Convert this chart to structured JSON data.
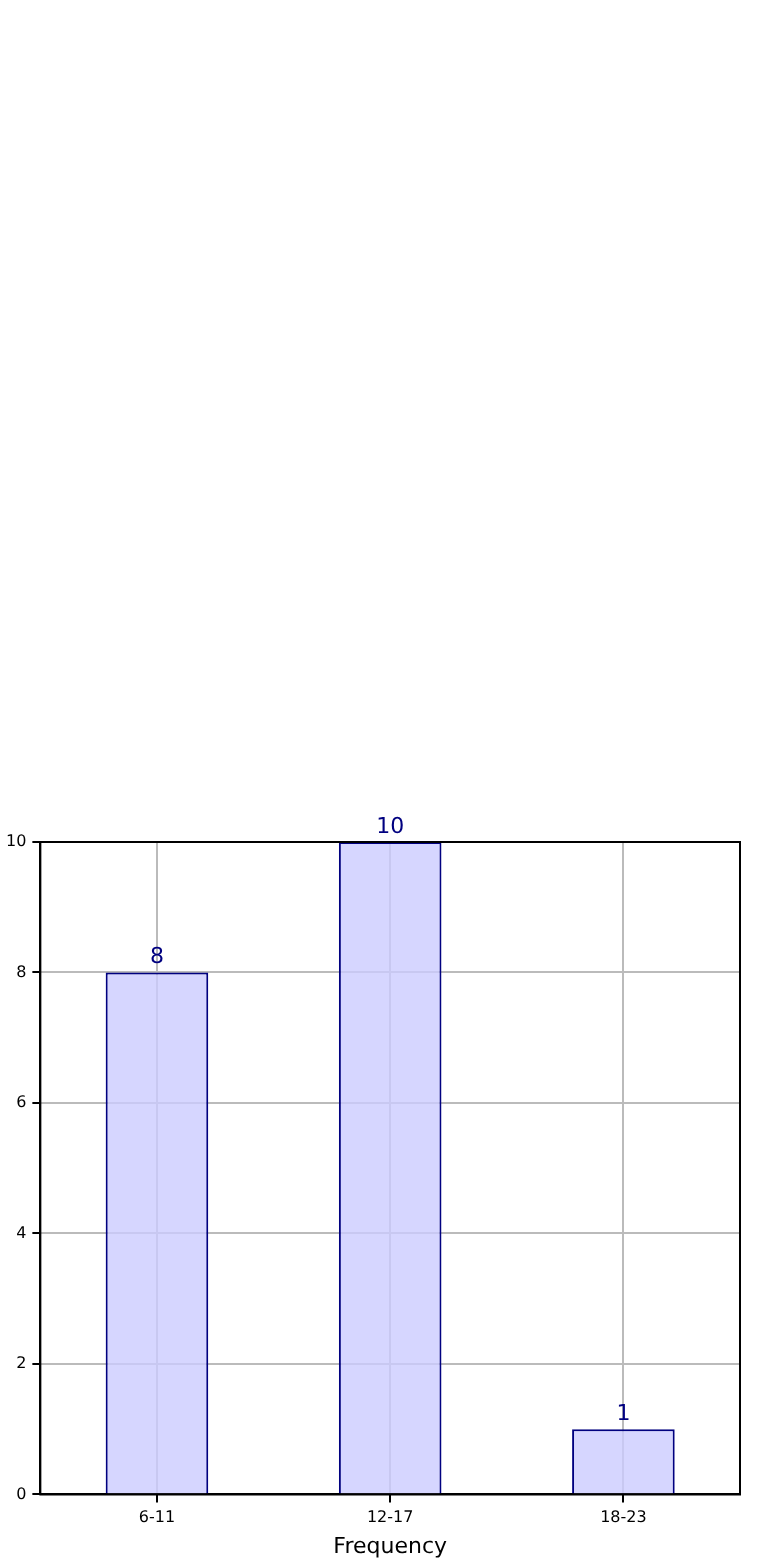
{
  "chart_data": {
    "type": "bar",
    "xlabel": "Frequency",
    "categories": [
      "6-11",
      "12-17",
      "18-23"
    ],
    "series": [
      {
        "color": "#ccccff",
        "values": [
          8,
          10,
          1
        ]
      }
    ],
    "ylim": [
      0,
      10
    ],
    "yticks": [
      0,
      2,
      4,
      6,
      8,
      10
    ],
    "grid": true,
    "data_labels": true,
    "legend": false
  }
}
